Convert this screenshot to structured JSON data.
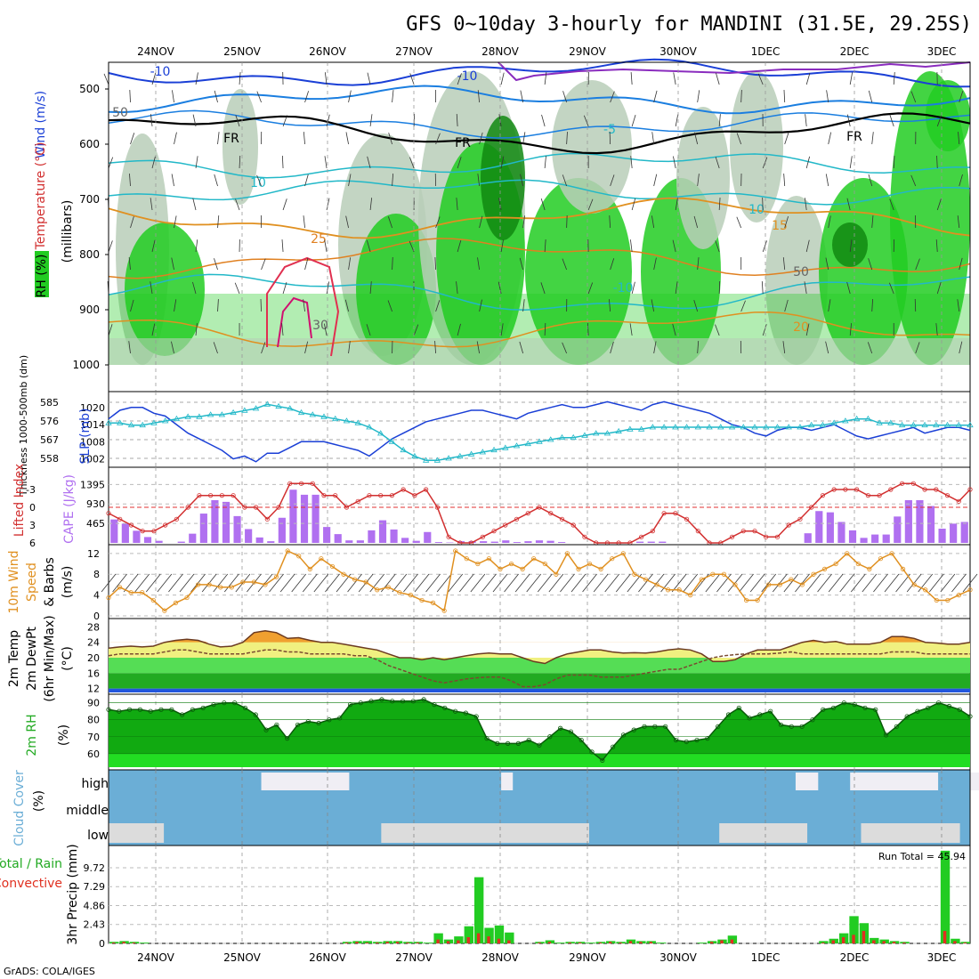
{
  "title": "GFS 0~10day 3-hourly for MANDINI (31.5E, 29.25S)",
  "footer": "GrADS: COLA/IGES",
  "dates": [
    "24NOV",
    "25NOV",
    "26NOV",
    "27NOV",
    "28NOV",
    "29NOV",
    "30NOV",
    "1DEC",
    "2DEC",
    "3DEC"
  ],
  "colors": {
    "rh_green": "#22cc22",
    "rh_dark": "#118811",
    "slp": "#1a3fd6",
    "thickness": "#22b8c8",
    "lifted": "#d23030",
    "cape": "#b070f0",
    "wind": "#e09020",
    "temp_fill": "#f0f080",
    "temp_max": "#f0a030",
    "cloud_blue": "#6baed6",
    "cloud_light": "#dcdcdc",
    "precip_total": "#22cc22",
    "precip_conv": "#e03020"
  },
  "panels": {
    "upper": {
      "ylabel_wind": "Wind (m/s)",
      "ylabel_temp": "Temperature (°C)",
      "ylabel_mb": "(millibars)",
      "ylabel_rh": "RH (%)",
      "yticks": [
        "500",
        "600",
        "700",
        "800",
        "900",
        "1000"
      ],
      "contour_labels": [
        "-10",
        "-10",
        "-5",
        "FR",
        "FR",
        "FR",
        "10",
        "15",
        "-10",
        "25",
        "20",
        "10",
        "50",
        "30",
        "50"
      ]
    },
    "slp": {
      "ylabel_thk": "Thickness 1000-500mb (dm)",
      "ylabel_slp": "SLP (mb)",
      "left_ticks": [
        "585",
        "576",
        "567",
        "558"
      ],
      "right_ticks": [
        "1020",
        "1014",
        "1008",
        "1002"
      ]
    },
    "cape": {
      "ylabel_li": "Lifted Index",
      "ylabel_cape": "CAPE (J/kg)",
      "left_ticks": [
        "-3",
        "0",
        "3",
        "6"
      ],
      "right_ticks": [
        "1395",
        "930",
        "465"
      ]
    },
    "wind": {
      "ylabel1": "10m Wind",
      "ylabel2": "Speed",
      "ylabel3": "& Barbs",
      "unit": "(m/s)",
      "ticks": [
        "12",
        "8",
        "4",
        "0"
      ]
    },
    "temp": {
      "ylabel1": "2m Temp",
      "ylabel2": "2m DewPt",
      "ylabel3": "(6hr Min/Max)",
      "unit": "(°C)",
      "ticks": [
        "28",
        "24",
        "20",
        "16",
        "12"
      ]
    },
    "rh": {
      "ylabel": "2m RH",
      "unit": "(%)",
      "ticks": [
        "90",
        "80",
        "70",
        "60"
      ]
    },
    "cloud": {
      "ylabel": "Cloud Cover",
      "unit": "(%)",
      "levels": [
        "high",
        "middle",
        "low"
      ]
    },
    "precip": {
      "ylabel1": "Total / Rain",
      "ylabel2": "Convective",
      "ylabel3": "3hr Precip (mm)",
      "ticks": [
        "9.72",
        "7.29",
        "4.86",
        "2.43",
        "0"
      ],
      "run_total": "Run Total = 45.94"
    }
  },
  "chart_data": [
    {
      "type": "line",
      "title": "",
      "xlabel": "",
      "ylabel": "SLP (mb)",
      "series": [
        {
          "name": "SLP (mb)",
          "values": [
            1016,
            1019,
            1020,
            1020,
            1018,
            1017,
            1014,
            1011,
            1009,
            1007,
            1005,
            1002,
            1003,
            1001,
            1004,
            1004,
            1006,
            1008,
            1008,
            1008,
            1007,
            1006,
            1005,
            1003,
            1006,
            1009,
            1011,
            1013,
            1015,
            1016,
            1017,
            1018,
            1019,
            1019,
            1018,
            1017,
            1016,
            1018,
            1019,
            1020,
            1021,
            1020,
            1020,
            1021,
            1022,
            1021,
            1020,
            1019,
            1021,
            1022,
            1021,
            1020,
            1019,
            1018,
            1016,
            1014,
            1013,
            1011,
            1010,
            1012,
            1013,
            1013,
            1012,
            1013,
            1014,
            1012,
            1010,
            1009,
            1010,
            1011,
            1012,
            1013,
            1011,
            1012,
            1013,
            1013,
            1012
          ]
        },
        {
          "name": "Thickness 1000-500mb (dm)",
          "values": [
            575,
            575,
            574,
            574,
            575,
            576,
            577,
            578,
            578,
            579,
            579,
            580,
            581,
            582,
            584,
            583,
            582,
            580,
            579,
            578,
            577,
            576,
            575,
            573,
            570,
            566,
            562,
            559,
            557,
            557,
            558,
            559,
            560,
            561,
            562,
            563,
            564,
            565,
            566,
            567,
            568,
            568,
            569,
            570,
            570,
            571,
            572,
            572,
            573,
            573,
            573,
            573,
            573,
            573,
            573,
            573,
            573,
            573,
            573,
            573,
            573,
            573,
            574,
            574,
            575,
            576,
            577,
            577,
            575,
            575,
            574,
            574,
            574,
            574,
            574,
            574,
            574
          ]
        }
      ],
      "left_ylim": [
        555,
        588
      ],
      "right_ylim": [
        1000,
        1024
      ]
    },
    {
      "type": "bar",
      "title": "",
      "ylabel": "CAPE (J/kg)",
      "series": [
        {
          "name": "CAPE (J/kg)",
          "values": [
            560,
            460,
            290,
            140,
            50,
            0,
            30,
            220,
            700,
            1020,
            980,
            640,
            330,
            130,
            40,
            600,
            1270,
            1150,
            1150,
            380,
            210,
            60,
            60,
            300,
            540,
            320,
            120,
            50,
            260,
            20,
            10,
            40,
            40,
            40,
            30,
            60,
            20,
            40,
            60,
            50,
            20,
            0,
            0,
            0,
            0,
            0,
            0,
            30,
            30,
            30,
            0,
            0,
            0,
            0,
            0,
            0,
            0,
            0,
            0,
            0,
            0,
            0,
            230,
            760,
            730,
            500,
            300,
            120,
            200,
            200,
            630,
            1020,
            1020,
            880,
            340,
            460,
            500
          ]
        },
        {
          "name": "Lifted Index",
          "values": [
            1,
            2,
            3,
            4,
            4,
            3,
            2,
            0,
            -2,
            -2,
            -2,
            -2,
            0,
            0,
            2,
            0,
            -4,
            -4,
            -4,
            -2,
            -2,
            0,
            -1,
            -2,
            -2,
            -2,
            -3,
            -2,
            -3,
            0,
            5,
            6,
            6,
            5,
            4,
            3,
            2,
            1,
            0,
            1,
            2,
            3,
            5,
            6,
            6,
            6,
            6,
            5,
            4,
            1,
            1,
            2,
            4,
            6,
            6,
            5,
            4,
            4,
            5,
            5,
            3,
            2,
            0,
            -2,
            -3,
            -3,
            -3,
            -2,
            -2,
            -3,
            -4,
            -4,
            -3,
            -3,
            -2,
            -1,
            -3
          ]
        }
      ],
      "cape_ylim": [
        0,
        1700
      ],
      "li_ylim": [
        6,
        -6
      ]
    },
    {
      "type": "line",
      "title": "",
      "ylabel": "10m Wind Speed (m/s)",
      "series": [
        {
          "name": "10m Wind Speed",
          "values": [
            3.5,
            5.5,
            4.5,
            4.5,
            3,
            1,
            2.5,
            3.5,
            6,
            6,
            5.5,
            5.5,
            6.5,
            6.5,
            6,
            7.5,
            12.5,
            11.5,
            9,
            11,
            9.5,
            8,
            7,
            6.5,
            5,
            5.5,
            4.5,
            4,
            3,
            2.5,
            1,
            12.5,
            11,
            10,
            11,
            9,
            10,
            9,
            11,
            10,
            8,
            12,
            9,
            10,
            9,
            11,
            12,
            8,
            7,
            6,
            5,
            5,
            4,
            7,
            8,
            8,
            6,
            3,
            3,
            6,
            6,
            7,
            6,
            8,
            9,
            10,
            12,
            10,
            9,
            11,
            12,
            9,
            6,
            5,
            3,
            3,
            4,
            5
          ]
        }
      ],
      "ylim": [
        0,
        13
      ]
    },
    {
      "type": "area",
      "title": "",
      "ylabel": "2m Temp / DewPt (°C)",
      "series": [
        {
          "name": "2m Temp",
          "values": [
            22.5,
            22.8,
            23,
            22.8,
            23,
            24,
            24.5,
            24.8,
            24.5,
            23.5,
            22.8,
            23,
            24,
            26.5,
            27,
            26.5,
            25,
            25.2,
            24.5,
            24,
            24,
            23.5,
            23,
            22.5,
            22,
            21,
            20,
            20,
            19.5,
            20,
            19.5,
            20,
            20.5,
            21,
            21.2,
            21,
            21,
            20,
            19,
            18.5,
            20,
            21,
            21.5,
            22,
            22,
            21.5,
            21.2,
            21.3,
            21.2,
            21.5,
            22,
            22.3,
            22,
            21,
            19,
            19,
            19.5,
            21,
            22,
            22,
            22,
            23,
            24,
            24.5,
            24,
            24.2,
            23.5,
            23.5,
            23.5,
            24,
            25.5,
            25.5,
            25,
            24,
            23.8,
            23.5,
            23.5,
            24
          ]
        },
        {
          "name": "2m DewPt",
          "values": [
            20.5,
            21,
            21,
            21,
            21,
            21.5,
            22,
            22,
            21.5,
            21,
            21,
            21,
            21,
            21.5,
            22,
            22,
            21.5,
            21.5,
            21,
            21,
            21,
            21,
            20.5,
            20.5,
            19.5,
            18,
            17,
            16,
            15,
            14,
            13.5,
            14,
            14.5,
            14.8,
            15,
            15,
            14,
            12.5,
            12.5,
            13,
            14.5,
            15.5,
            15.5,
            15.5,
            15,
            15,
            15,
            15.5,
            16,
            16.5,
            17,
            17,
            18,
            19,
            20,
            20.5,
            20.8,
            21,
            21,
            21,
            21.2,
            21.5,
            21,
            21,
            21,
            21,
            21,
            21,
            21,
            21,
            21.5,
            21.5,
            21.5,
            21,
            21,
            21,
            21,
            21
          ]
        }
      ],
      "ylim": [
        11,
        29
      ]
    },
    {
      "type": "area",
      "title": "",
      "ylabel": "2m RH (%)",
      "series": [
        {
          "name": "2m RH",
          "values": [
            86,
            85,
            86,
            86,
            85,
            86,
            86,
            83,
            86,
            87,
            89,
            90,
            90,
            87,
            83,
            74,
            77,
            69,
            77,
            79,
            78,
            80,
            81,
            89,
            90,
            91,
            92,
            91,
            91,
            91,
            92,
            89,
            87,
            85,
            84,
            82,
            69,
            66,
            66,
            66,
            68,
            65,
            70,
            75,
            73,
            68,
            61,
            56,
            64,
            71,
            74,
            76,
            76,
            76,
            68,
            67,
            68,
            69,
            76,
            83,
            87,
            81,
            83,
            85,
            77,
            76,
            76,
            80,
            86,
            87,
            90,
            89,
            87,
            86,
            71,
            76,
            82,
            85,
            87,
            90,
            88,
            86,
            82
          ]
        }
      ],
      "ylim": [
        52,
        93
      ]
    },
    {
      "type": "bar",
      "title": "",
      "ylabel": "3hr Precip (mm)",
      "series": [
        {
          "name": "Total",
          "values": [
            0.2,
            0.3,
            0.2,
            0.1,
            0,
            0,
            0,
            0,
            0,
            0,
            0,
            0,
            0,
            0,
            0,
            0,
            0,
            0,
            0,
            0,
            0,
            0,
            0,
            0.2,
            0.3,
            0.3,
            0.2,
            0.3,
            0.3,
            0.2,
            0.2,
            0.1,
            1.3,
            0.5,
            0.9,
            2.2,
            8.5,
            2.0,
            2.3,
            1.4,
            0,
            0,
            0.2,
            0.4,
            0.1,
            0.2,
            0.2,
            0.1,
            0.2,
            0.3,
            0.2,
            0.5,
            0.3,
            0.3,
            0.1,
            0,
            0,
            0,
            0.1,
            0.3,
            0.5,
            1.0,
            0,
            0,
            0,
            0,
            0,
            0,
            0,
            0,
            0.3,
            0.6,
            1.3,
            3.5,
            2.6,
            0.7,
            0.5,
            0.3,
            0.2,
            0,
            0,
            0,
            11.9,
            0.6,
            0.2
          ]
        },
        {
          "name": "Convective",
          "values": [
            0.1,
            0.2,
            0.1,
            0,
            0,
            0,
            0,
            0,
            0,
            0,
            0,
            0,
            0,
            0,
            0,
            0,
            0,
            0,
            0,
            0,
            0,
            0,
            0,
            0.1,
            0.2,
            0.1,
            0.1,
            0.2,
            0.2,
            0.1,
            0.1,
            0,
            0.5,
            0.3,
            0.4,
            0.8,
            1.3,
            0.9,
            0.6,
            0.4,
            0,
            0,
            0.1,
            0.2,
            0,
            0.1,
            0.1,
            0,
            0.1,
            0.2,
            0.1,
            0.3,
            0.2,
            0.2,
            0,
            0,
            0,
            0,
            0,
            0.2,
            0.4,
            0.5,
            0,
            0,
            0,
            0,
            0,
            0,
            0,
            0,
            0.1,
            0.4,
            0.8,
            1.1,
            1.6,
            0.4,
            0.3,
            0.2,
            0.1,
            0,
            0,
            0,
            1.6,
            0.3,
            0.1
          ]
        }
      ],
      "ylim": [
        0,
        12
      ]
    }
  ]
}
